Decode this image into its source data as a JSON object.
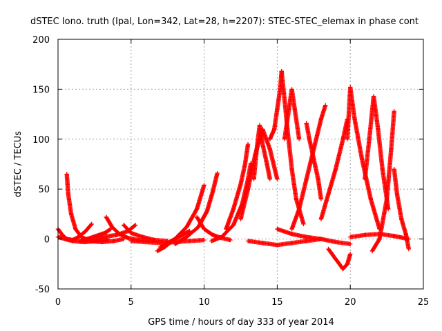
{
  "colors": {
    "series": "#ff0000",
    "grid": "#a0a0a0",
    "frame": "#000000",
    "background": "#ffffff"
  },
  "chart_data": {
    "type": "scatter",
    "marker": "plus",
    "title": "dSTEC Iono. truth (Ipal, Lon=342, Lat=28, h=2207): STEC-STEC_elemax in phase cont",
    "xlabel": "GPS time / hours of day 333 of year 2014",
    "ylabel": "dSTEC  / TECUs",
    "xlim": [
      0,
      25
    ],
    "ylim": [
      -50,
      200
    ],
    "grid": true,
    "xticks": [
      0,
      5,
      10,
      15,
      20,
      25
    ],
    "yticks": [
      -50,
      0,
      50,
      100,
      150,
      200
    ],
    "x_tick_labels": [
      "0",
      "5",
      "10",
      "15",
      "20",
      "25"
    ],
    "y_tick_labels": [
      "-50",
      "0",
      "50",
      "100",
      "150",
      "200"
    ],
    "arcs": [
      {
        "x": [
          0.0,
          0.3,
          0.6,
          1.0,
          1.4,
          1.9,
          2.3
        ],
        "y": [
          10,
          4,
          0,
          -1,
          2,
          8,
          15
        ]
      },
      {
        "x": [
          0.0,
          0.5,
          1.0,
          1.8,
          2.6,
          3.4
        ],
        "y": [
          2,
          0,
          -2,
          -3,
          -2,
          0
        ]
      },
      {
        "x": [
          0.6,
          0.7,
          0.9,
          1.2,
          1.6,
          2.2,
          3.0,
          3.8,
          4.5
        ],
        "y": [
          65,
          45,
          25,
          10,
          2,
          -2,
          -3,
          -2,
          0
        ]
      },
      {
        "x": [
          1.5,
          2.0,
          2.6,
          3.2,
          3.6
        ],
        "y": [
          -2,
          0,
          3,
          6,
          10
        ]
      },
      {
        "x": [
          3.3,
          3.7,
          4.2,
          4.8,
          5.5,
          6.5
        ],
        "y": [
          22,
          12,
          5,
          1,
          -1,
          -2
        ]
      },
      {
        "x": [
          2.0,
          3.0,
          4.0,
          4.8,
          5.3
        ],
        "y": [
          0,
          2,
          4,
          8,
          14
        ]
      },
      {
        "x": [
          4.5,
          5.0,
          5.8,
          6.6,
          7.5
        ],
        "y": [
          14,
          6,
          2,
          -1,
          -2
        ]
      },
      {
        "x": [
          5.0,
          6.0,
          7.0,
          8.0,
          9.0,
          10.0
        ],
        "y": [
          -2,
          -3,
          -4,
          -3,
          -2,
          -1
        ]
      },
      {
        "x": [
          6.8,
          7.3,
          8.0,
          8.8,
          9.5,
          10.0
        ],
        "y": [
          -12,
          -8,
          0,
          12,
          30,
          54
        ]
      },
      {
        "x": [
          7.0,
          7.5,
          8.0,
          8.5,
          9.0
        ],
        "y": [
          -8,
          -4,
          0,
          4,
          8
        ]
      },
      {
        "x": [
          8.0,
          8.8,
          9.6,
          10.2,
          10.6,
          10.9
        ],
        "y": [
          -5,
          2,
          12,
          28,
          48,
          66
        ]
      },
      {
        "x": [
          9.5,
          10.0,
          10.6,
          11.2,
          11.8
        ],
        "y": [
          22,
          10,
          4,
          1,
          -1
        ]
      },
      {
        "x": [
          10.5,
          11.2,
          12.0,
          12.6,
          13.0,
          13.2
        ],
        "y": [
          -2,
          2,
          14,
          35,
          60,
          76
        ]
      },
      {
        "x": [
          11.5,
          12.0,
          12.5,
          12.8,
          13.0
        ],
        "y": [
          10,
          30,
          55,
          75,
          95
        ]
      },
      {
        "x": [
          12.5,
          13.0,
          13.5,
          14.0,
          14.5,
          15.0
        ],
        "y": [
          20,
          50,
          85,
          110,
          90,
          60
        ]
      },
      {
        "x": [
          13.4,
          13.6,
          13.8,
          14.0,
          14.3,
          14.5
        ],
        "y": [
          60,
          90,
          114,
          95,
          75,
          60
        ]
      },
      {
        "x": [
          14.5,
          14.8,
          15.0,
          15.2,
          15.3
        ],
        "y": [
          100,
          110,
          130,
          150,
          168
        ]
      },
      {
        "x": [
          15.3,
          15.5,
          15.7,
          16.0,
          16.3,
          16.8
        ],
        "y": [
          168,
          140,
          110,
          70,
          40,
          15
        ]
      },
      {
        "x": [
          15.5,
          15.8,
          16.0,
          16.2,
          16.5
        ],
        "y": [
          100,
          130,
          150,
          130,
          100
        ]
      },
      {
        "x": [
          16.0,
          16.5,
          17.0,
          17.5,
          18.0,
          18.3
        ],
        "y": [
          10,
          30,
          60,
          90,
          120,
          134
        ]
      },
      {
        "x": [
          17.0,
          17.2,
          17.5,
          17.8,
          18.0
        ],
        "y": [
          116,
          100,
          80,
          60,
          40
        ]
      },
      {
        "x": [
          18.0,
          18.5,
          19.0,
          19.5,
          19.8
        ],
        "y": [
          20,
          45,
          70,
          100,
          120
        ]
      },
      {
        "x": [
          18.5,
          19.0,
          19.5,
          19.8,
          20.0
        ],
        "y": [
          -10,
          -20,
          -30,
          -25,
          -15
        ]
      },
      {
        "x": [
          19.8,
          20.0,
          20.3,
          20.8,
          21.4,
          22.0
        ],
        "y": [
          100,
          152,
          120,
          80,
          40,
          10
        ]
      },
      {
        "x": [
          21.0,
          21.3,
          21.6,
          21.9,
          22.2,
          22.6
        ],
        "y": [
          60,
          100,
          143,
          110,
          70,
          30
        ]
      },
      {
        "x": [
          21.5,
          22.0,
          22.5,
          22.8,
          23.0
        ],
        "y": [
          -12,
          0,
          40,
          90,
          128
        ]
      },
      {
        "x": [
          23.0,
          23.2,
          23.5,
          23.8,
          24.0
        ],
        "y": [
          70,
          45,
          20,
          5,
          -10
        ]
      },
      {
        "x": [
          20.0,
          21.0,
          22.0,
          23.0,
          24.0
        ],
        "y": [
          2,
          4,
          5,
          3,
          0
        ]
      },
      {
        "x": [
          13.0,
          14.0,
          15.0,
          16.0,
          17.0,
          18.0
        ],
        "y": [
          -2,
          -4,
          -6,
          -4,
          -2,
          0
        ]
      },
      {
        "x": [
          15.0,
          16.0,
          17.0,
          18.0,
          19.0,
          20.0
        ],
        "y": [
          10,
          5,
          2,
          0,
          -3,
          -5
        ]
      }
    ]
  }
}
